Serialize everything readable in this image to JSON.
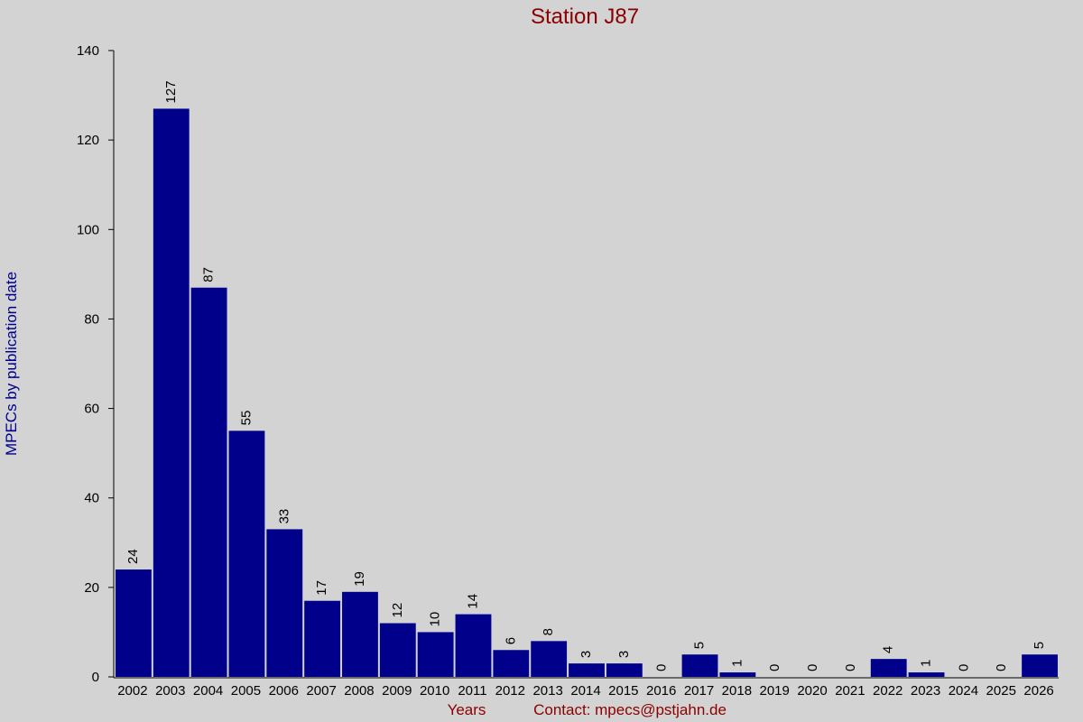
{
  "chart_data": {
    "type": "bar",
    "title": "Station J87",
    "x_label": "Years",
    "contact": "Contact: mpecs@pstjahn.de",
    "y_label": "MPECs by publication date",
    "categories": [
      "2002",
      "2003",
      "2004",
      "2005",
      "2006",
      "2007",
      "2008",
      "2009",
      "2010",
      "2011",
      "2012",
      "2013",
      "2014",
      "2015",
      "2016",
      "2017",
      "2018",
      "2019",
      "2020",
      "2021",
      "2022",
      "2023",
      "2024",
      "2025",
      "2026"
    ],
    "values": [
      24,
      127,
      87,
      55,
      33,
      17,
      19,
      12,
      10,
      14,
      6,
      8,
      3,
      3,
      0,
      5,
      1,
      0,
      0,
      0,
      4,
      1,
      0,
      0,
      5
    ],
    "color": "#00008b",
    "ylim": [
      0,
      140
    ],
    "yticks": [
      0,
      20,
      40,
      60,
      80,
      100,
      120,
      140
    ]
  }
}
